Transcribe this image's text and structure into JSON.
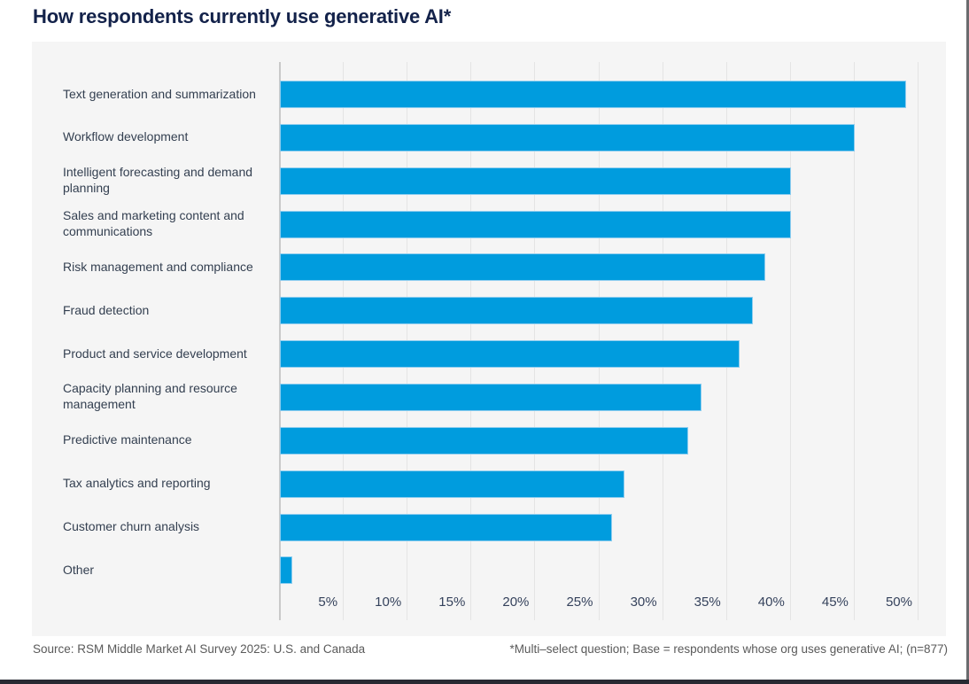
{
  "page": {
    "title": "How respondents currently use generative AI*",
    "footer": {
      "source": "Source: RSM Middle Market AI Survey 2025: U.S. and Canada",
      "note": "*Multi–select question; Base = respondents whose org uses generative AI; (n=877)"
    }
  },
  "colors": {
    "bar": "#009CDE",
    "bar_edge": "#8ecdef",
    "panel_background": "#f5f5f5",
    "title_text": "#13224a",
    "label_text": "#333f50",
    "footer_text": "#5a5a5a",
    "gridline": "#e4e4e4",
    "axis_line": "#c9c9c9"
  },
  "chart_data": {
    "type": "bar",
    "orientation": "horizontal",
    "title": "How respondents currently use generative AI*",
    "categories": [
      "Text generation and summarization",
      "Workflow development",
      "Intelligent forecasting and demand planning",
      "Sales and marketing content and communications",
      "Risk management and compliance",
      "Fraud detection",
      "Product and service development",
      "Capacity planning and resource management",
      "Predictive maintenance",
      "Tax analytics and reporting",
      "Customer churn analysis",
      "Other"
    ],
    "values": [
      49,
      45,
      40,
      40,
      38,
      37,
      36,
      33,
      32,
      27,
      26,
      1
    ],
    "unit": "%",
    "xlim": [
      0,
      50
    ],
    "xtick_step": 5,
    "xticks": [
      "5%",
      "10%",
      "15%",
      "20%",
      "25%",
      "30%",
      "35%",
      "40%",
      "45%",
      "50%"
    ],
    "grid": true,
    "legend": false,
    "xlabel": "",
    "ylabel": ""
  }
}
